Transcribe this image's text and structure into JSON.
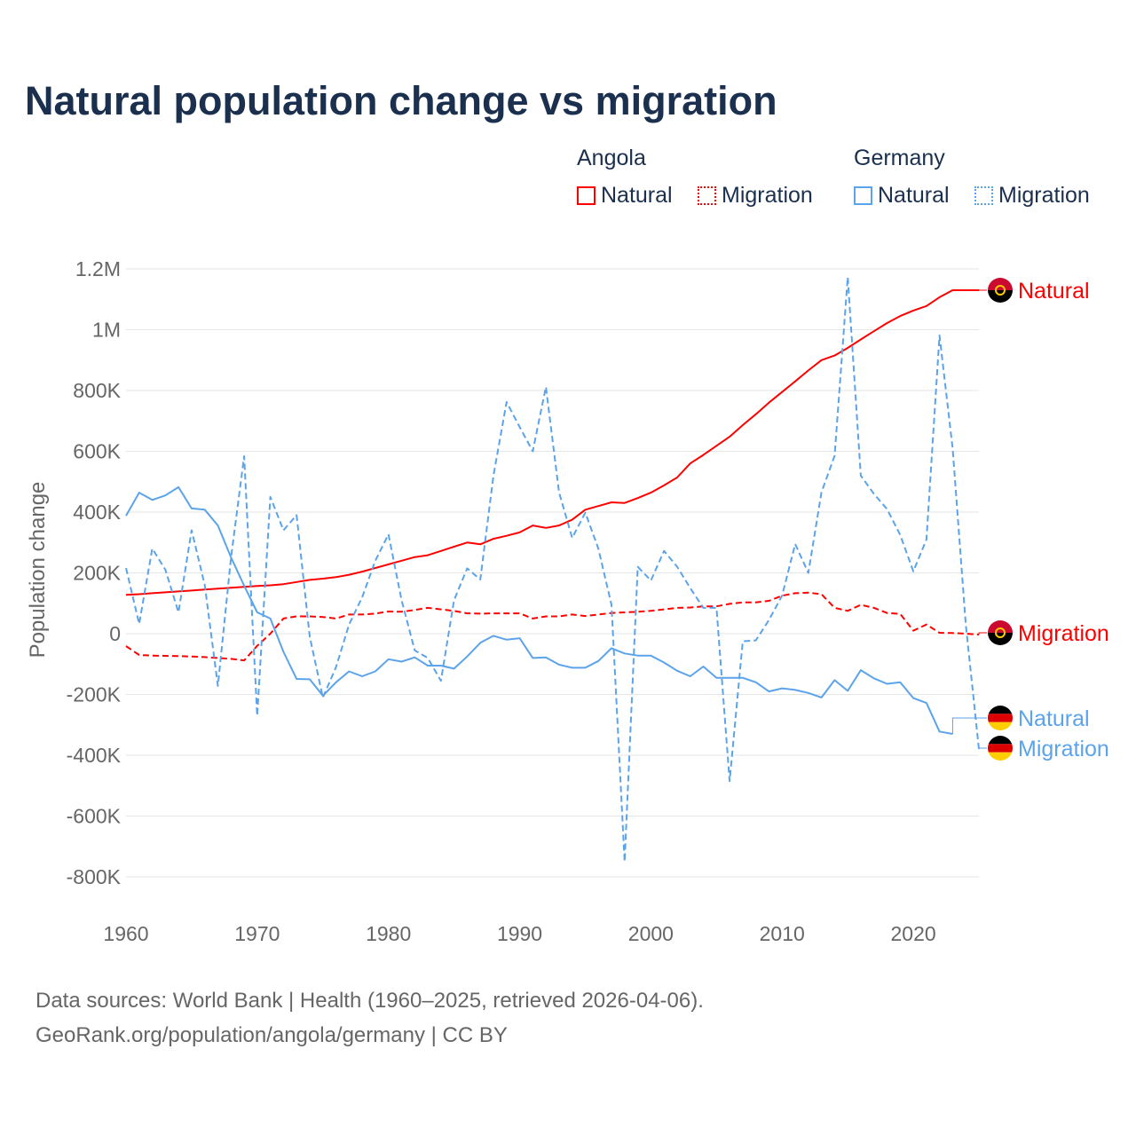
{
  "title": "Natural population change vs migration",
  "legend": {
    "groups": [
      {
        "name": "Angola",
        "color": "#ff0000",
        "items": [
          "Natural",
          "Migration"
        ]
      },
      {
        "name": "Germany",
        "color": "#5ba3ea",
        "items": [
          "Natural",
          "Migration"
        ]
      }
    ]
  },
  "footer": {
    "line1": "Data sources: World Bank | Health (1960–2025, retrieved 2026-04-06).",
    "line2": "GeoRank.org/population/angola/germany | CC BY"
  },
  "chart_data": {
    "type": "line",
    "title": "Natural population change vs migration",
    "xlabel": "",
    "ylabel": "Population change",
    "xlim": [
      1960,
      2025
    ],
    "ylim": [
      -800000,
      1200000
    ],
    "x_ticks": [
      "1960",
      "1970",
      "1980",
      "1990",
      "2000",
      "2010",
      "2020"
    ],
    "y_ticks": [
      {
        "value": 1200000,
        "label": "1.2M"
      },
      {
        "value": 1000000,
        "label": "1M"
      },
      {
        "value": 800000,
        "label": "800K"
      },
      {
        "value": 600000,
        "label": "600K"
      },
      {
        "value": 400000,
        "label": "400K"
      },
      {
        "value": 200000,
        "label": "200K"
      },
      {
        "value": 0,
        "label": "0"
      },
      {
        "value": -200000,
        "label": "-200K"
      },
      {
        "value": -400000,
        "label": "-400K"
      },
      {
        "value": -600000,
        "label": "-600K"
      },
      {
        "value": -800000,
        "label": "-800K"
      }
    ],
    "grid": true,
    "legend_position": "top-right",
    "start_year": 1960,
    "units": "thousands",
    "series": [
      {
        "name": "Angola Natural",
        "label": "Natural",
        "flag": "angola",
        "color": "#ff0000",
        "dash": false,
        "values": [
          128,
          130,
          133,
          136,
          139,
          142,
          145,
          148,
          151,
          154,
          157,
          159,
          163,
          170,
          177,
          181,
          186,
          194,
          204,
          216,
          228,
          240,
          252,
          258,
          272,
          286,
          300,
          294,
          312,
          322,
          333,
          356,
          348,
          356,
          375,
          408,
          420,
          432,
          430,
          446,
          464,
          488,
          514,
          560,
          588,
          618,
          648,
          686,
          722,
          760,
          795,
          830,
          866,
          900,
          915,
          940,
          968,
          995,
          1022,
          1045,
          1063,
          1078,
          1107,
          1130,
          1130,
          1130
        ]
      },
      {
        "name": "Angola Migration",
        "label": "Migration",
        "flag": "angola",
        "color": "#ff0000",
        "dash": true,
        "values": [
          -41,
          -70,
          -72,
          -73,
          -74,
          -75,
          -77,
          -80,
          -83,
          -88,
          -40,
          0,
          50,
          57,
          57,
          55,
          50,
          63,
          63,
          66,
          73,
          72,
          78,
          85,
          80,
          75,
          67,
          66,
          67,
          67,
          67,
          50,
          57,
          57,
          63,
          58,
          63,
          68,
          70,
          72,
          75,
          80,
          85,
          86,
          90,
          90,
          98,
          103,
          103,
          108,
          125,
          133,
          135,
          130,
          85,
          75,
          95,
          85,
          68,
          65,
          10,
          30,
          3,
          2,
          0,
          -3
        ]
      },
      {
        "name": "Germany Natural",
        "label": "Natural",
        "flag": "germany",
        "color": "#5ba3ea",
        "dash": false,
        "values": [
          388,
          464,
          440,
          455,
          482,
          412,
          408,
          356,
          251,
          158,
          70,
          50,
          -60,
          -149,
          -150,
          -204,
          -160,
          -124,
          -140,
          -124,
          -84,
          -92,
          -78,
          -105,
          -105,
          -115,
          -75,
          -30,
          -7,
          -20,
          -15,
          -80,
          -78,
          -102,
          -112,
          -112,
          -90,
          -48,
          -65,
          -72,
          -72,
          -95,
          -122,
          -140,
          -108,
          -145,
          -145,
          -145,
          -160,
          -190,
          -180,
          -185,
          -195,
          -210,
          -153,
          -188,
          -120,
          -147,
          -165,
          -160,
          -212,
          -228,
          -322,
          -330
        ]
      },
      {
        "name": "Germany Migration",
        "label": "Migration",
        "flag": "germany",
        "color": "#5ba3ea",
        "dash": true,
        "values": [
          216,
          32,
          280,
          210,
          70,
          340,
          160,
          -172,
          250,
          584,
          -270,
          450,
          340,
          390,
          -10,
          -210,
          -110,
          30,
          120,
          240,
          327,
          110,
          -55,
          -80,
          -155,
          110,
          215,
          178,
          520,
          762,
          680,
          600,
          812,
          465,
          315,
          398,
          280,
          95,
          -750,
          220,
          175,
          272,
          220,
          150,
          85,
          85,
          -485,
          -25,
          -22,
          45,
          125,
          295,
          200,
          465,
          585,
          1173,
          520,
          460,
          410,
          325,
          205,
          310,
          981,
          610,
          30,
          -380
        ]
      }
    ]
  }
}
